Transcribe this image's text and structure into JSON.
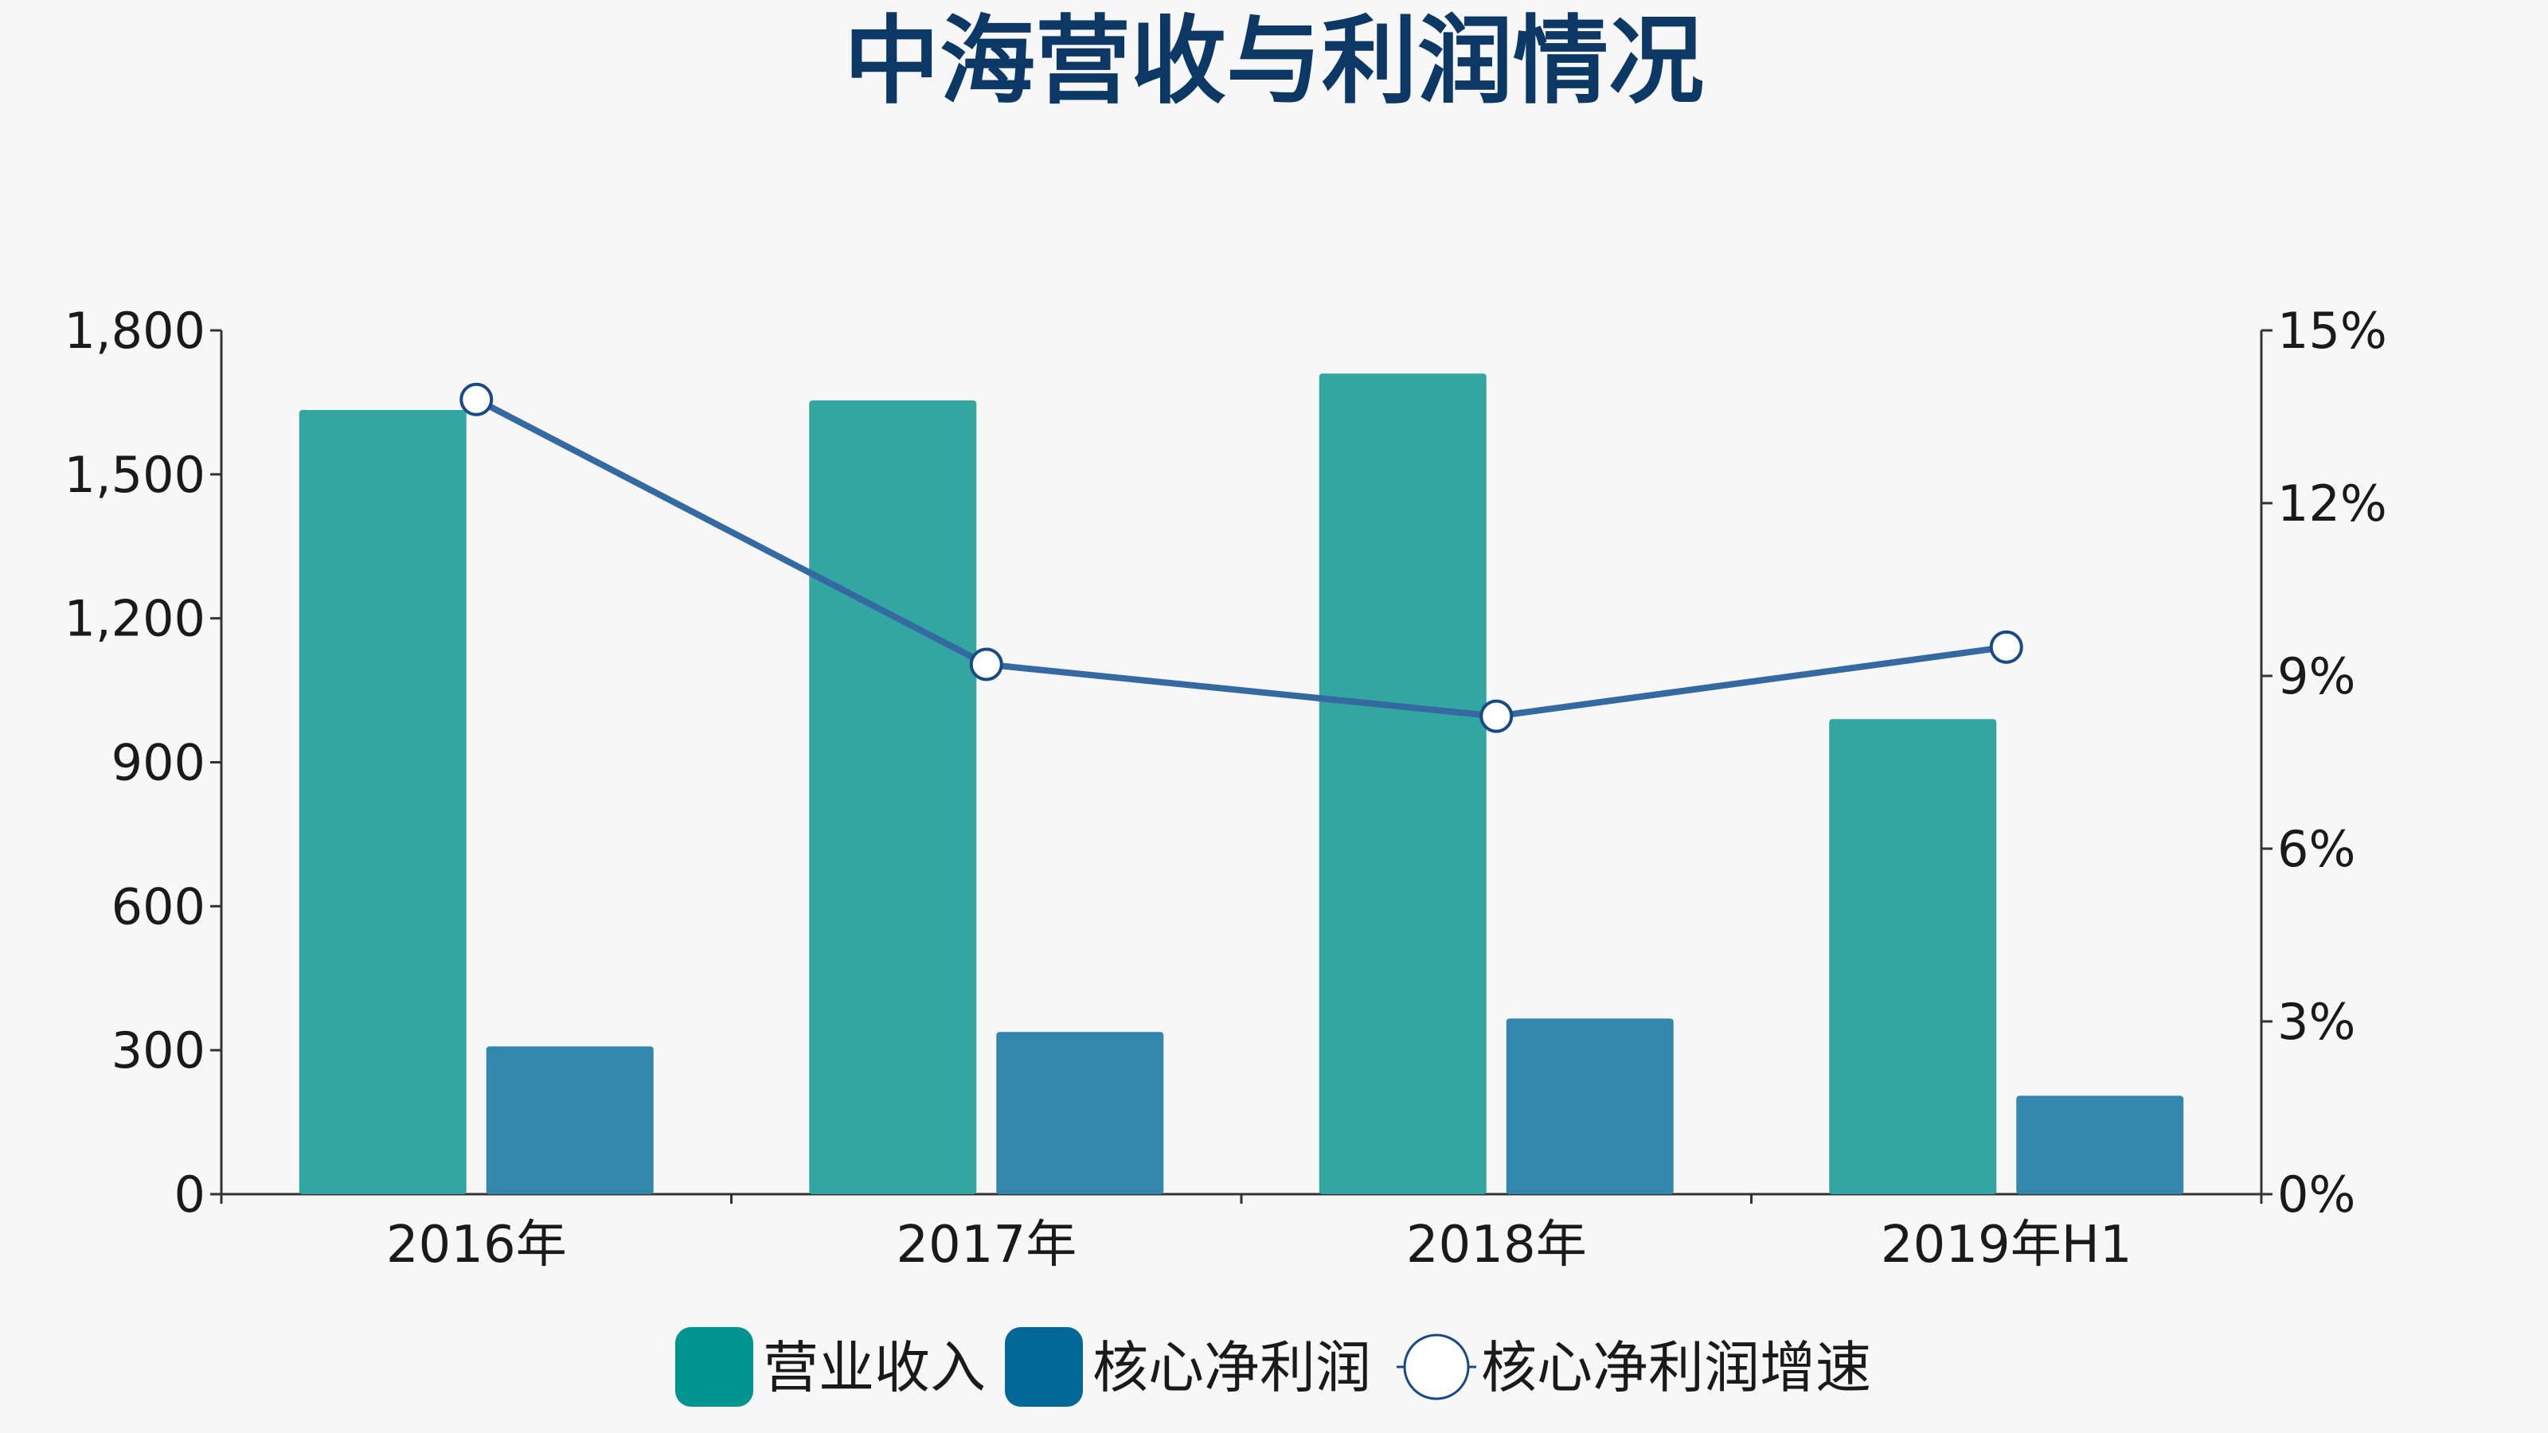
{
  "chart_data": {
    "type": "bar",
    "title": "中海营收与利润情况",
    "categories": [
      "2016年",
      "2017年",
      "2018年",
      "2019年H1"
    ],
    "series": [
      {
        "name": "营业收入",
        "kind": "bar",
        "axis": "left",
        "color": "#33a6a2",
        "legend_color": "#009490",
        "values": [
          1634,
          1654,
          1710,
          990
        ]
      },
      {
        "name": "核心净利润",
        "kind": "bar",
        "axis": "left",
        "color": "#3386ac",
        "legend_color": "#016898",
        "values": [
          308,
          338,
          366,
          205
        ]
      },
      {
        "name": "核心净利润增速",
        "kind": "line",
        "axis": "right",
        "color": "#3569a2",
        "values": [
          13.8,
          9.2,
          8.3,
          9.5
        ]
      }
    ],
    "y_left": {
      "min": 0,
      "max": 1800,
      "ticks": [
        0,
        300,
        600,
        900,
        1200,
        1500,
        1800
      ],
      "tick_labels": [
        "0",
        "300",
        "600",
        "900",
        "1,200",
        "1,500",
        "1,800"
      ]
    },
    "y_right": {
      "min": 0,
      "max": 15,
      "ticks": [
        0,
        3,
        6,
        9,
        12,
        15
      ],
      "tick_labels": [
        "0%",
        "3%",
        "6%",
        "9%",
        "12%",
        "15%"
      ]
    },
    "grid": false,
    "legend_position": "bottom",
    "title_color": "#0c3866"
  }
}
